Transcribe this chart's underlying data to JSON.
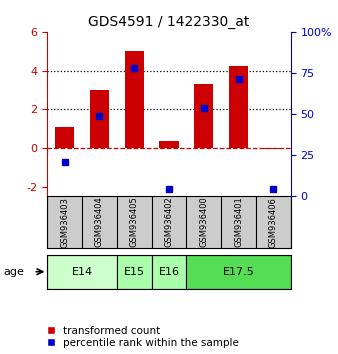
{
  "title": "GDS4591 / 1422330_at",
  "samples": [
    "GSM936403",
    "GSM936404",
    "GSM936405",
    "GSM936402",
    "GSM936400",
    "GSM936401",
    "GSM936406"
  ],
  "red_values": [
    1.1,
    3.0,
    5.0,
    0.35,
    3.3,
    4.25,
    -0.05
  ],
  "blue_values": [
    -0.7,
    1.65,
    4.15,
    -2.1,
    2.05,
    3.55,
    -2.1
  ],
  "age_groups": [
    {
      "label": "E14",
      "span": [
        0,
        2
      ],
      "color": "#ccffcc"
    },
    {
      "label": "E15",
      "span": [
        2,
        3
      ],
      "color": "#aaffaa"
    },
    {
      "label": "E16",
      "span": [
        3,
        4
      ],
      "color": "#aaffaa"
    },
    {
      "label": "E17.5",
      "span": [
        4,
        7
      ],
      "color": "#55dd55"
    }
  ],
  "ylim_left": [
    -2.5,
    6.0
  ],
  "ylim_right": [
    0,
    100
  ],
  "yticks_left": [
    -2,
    0,
    2,
    4,
    6
  ],
  "ytick_labels_left": [
    "-2",
    "0",
    "2",
    "4",
    "6"
  ],
  "yticks_right": [
    0,
    25,
    50,
    75,
    100
  ],
  "ytick_labels_right": [
    "0",
    "25",
    "50",
    "75",
    "100%"
  ],
  "red_color": "#cc0000",
  "blue_color": "#0000cc",
  "bar_width": 0.55,
  "bg_color": "#ffffff",
  "sample_bg_color": "#cccccc",
  "legend_red": "transformed count",
  "legend_blue": "percentile rank within the sample"
}
